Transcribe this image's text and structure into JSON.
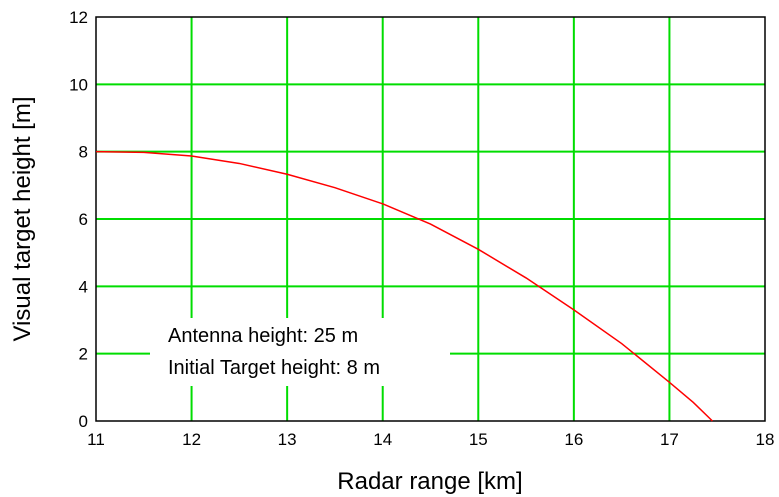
{
  "chart_data": {
    "type": "line",
    "title": "",
    "xlabel": "Radar range [km]",
    "ylabel": "Visual target height [m]",
    "xlim": [
      11,
      18
    ],
    "ylim": [
      0,
      12
    ],
    "xticks": [
      "11",
      "12",
      "13",
      "14",
      "15",
      "16",
      "17",
      "18"
    ],
    "yticks": [
      "0",
      "2",
      "4",
      "6",
      "8",
      "10",
      "12"
    ],
    "grid": true,
    "grid_color": "#00dd00",
    "series": [
      {
        "color": "#ff0000",
        "x": [
          11.0,
          11.5,
          12.0,
          12.5,
          13.0,
          13.5,
          14.0,
          14.5,
          15.0,
          15.5,
          16.0,
          16.5,
          17.0,
          17.25,
          17.45
        ],
        "y": [
          8.0,
          7.98,
          7.87,
          7.65,
          7.33,
          6.93,
          6.45,
          5.85,
          5.1,
          4.25,
          3.3,
          2.3,
          1.15,
          0.55,
          0.0
        ]
      }
    ],
    "annotations": [
      "Antenna height: 25 m",
      "Initial Target height: 8 m"
    ]
  }
}
